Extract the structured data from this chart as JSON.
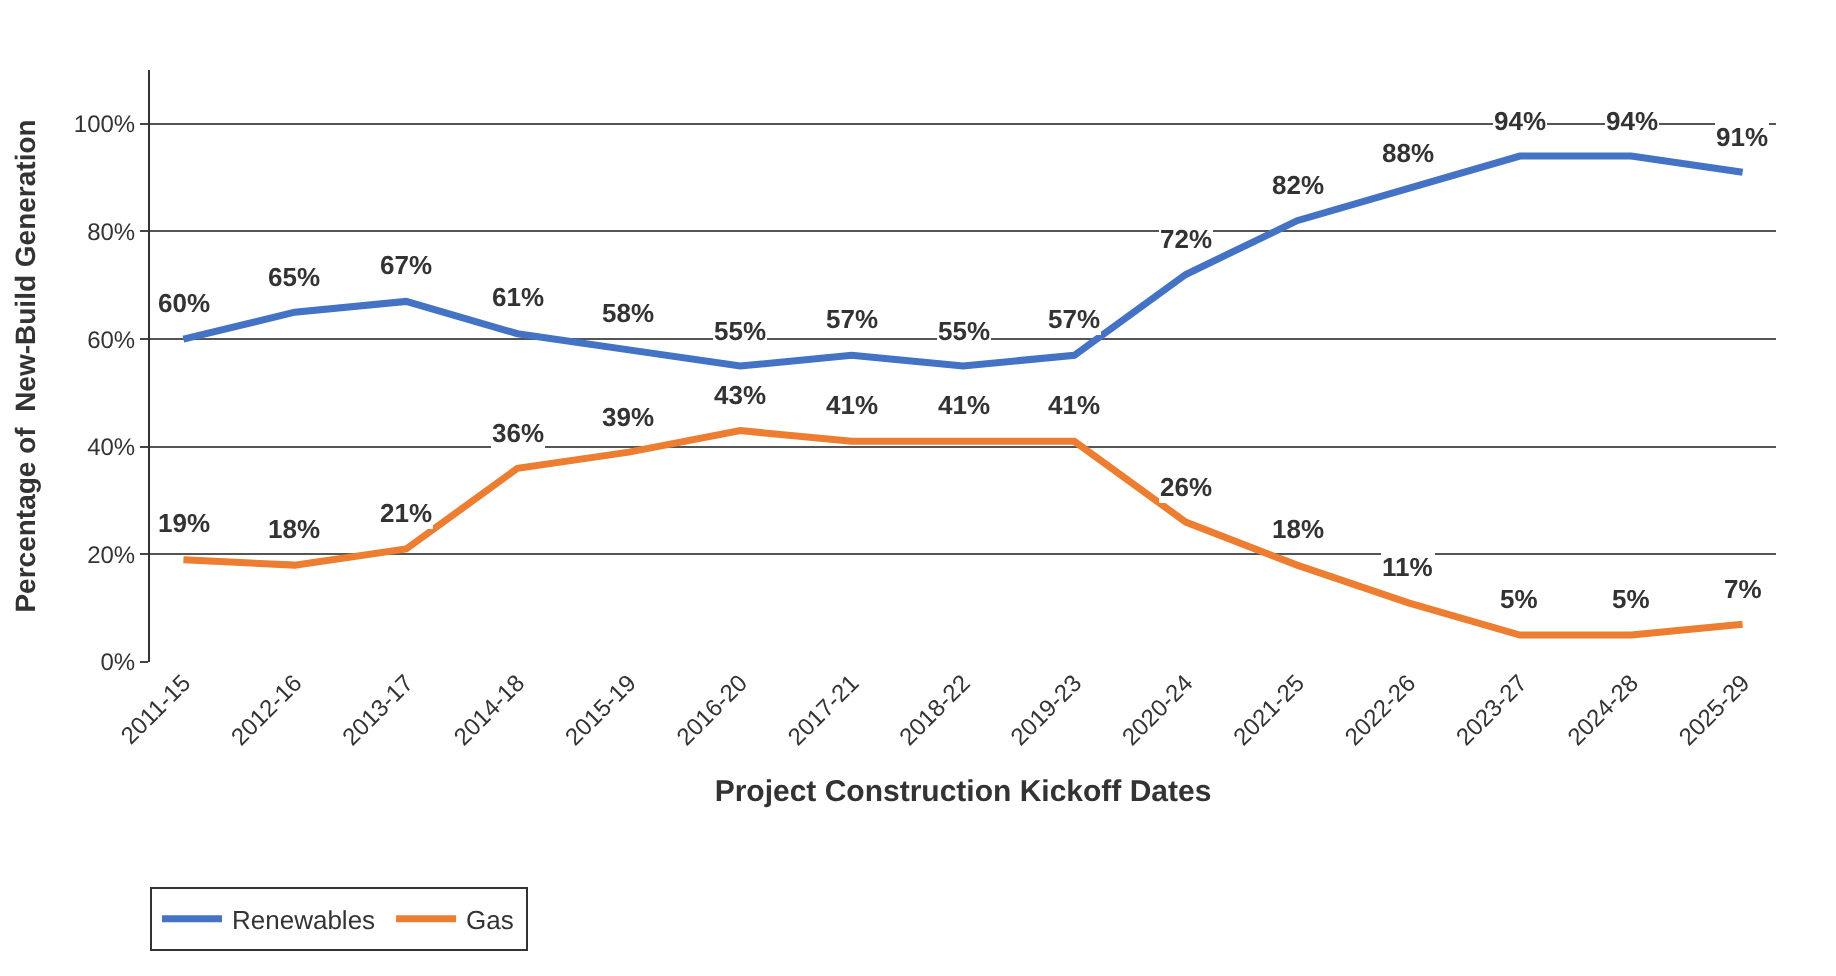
{
  "chart_data": {
    "type": "line",
    "xlabel": "Project Construction Kickoff Dates",
    "ylabel": "Percentage of  New-Build Generation",
    "categories": [
      "2011-15",
      "2012-16",
      "2013-17",
      "2014-18",
      "2015-19",
      "2016-20",
      "2017-21",
      "2018-22",
      "2019-23",
      "2020-24",
      "2021-25",
      "2022-26",
      "2023-27",
      "2024-28",
      "2025-29"
    ],
    "series": [
      {
        "name": "Renewables",
        "color": "#4472c4",
        "values": [
          60,
          65,
          67,
          61,
          58,
          55,
          57,
          55,
          57,
          72,
          82,
          88,
          94,
          94,
          91
        ],
        "value_labels": [
          "60%",
          "65%",
          "67%",
          "61%",
          "58%",
          "55%",
          "57%",
          "55%",
          "57%",
          "72%",
          "82%",
          "88%",
          "94%",
          "94%",
          "91%"
        ]
      },
      {
        "name": "Gas",
        "color": "#ed7d31",
        "values": [
          19,
          18,
          21,
          36,
          39,
          43,
          41,
          41,
          41,
          26,
          18,
          11,
          5,
          5,
          7
        ],
        "value_labels": [
          "19%",
          "18%",
          "21%",
          "36%",
          "39%",
          "43%",
          "41%",
          "41%",
          "41%",
          "26%",
          "18%",
          "11%",
          "5%",
          "5%",
          "7%"
        ]
      }
    ],
    "ylim": [
      0,
      110
    ],
    "yticks": [
      {
        "value": 0,
        "label": "0%"
      },
      {
        "value": 20,
        "label": "20%"
      },
      {
        "value": 40,
        "label": "40%"
      },
      {
        "value": 60,
        "label": "60%"
      },
      {
        "value": 80,
        "label": "80%"
      },
      {
        "value": 100,
        "label": "100%"
      }
    ],
    "grid": "y",
    "legend": "bottom left",
    "marker": "none",
    "line_style": "solid"
  }
}
